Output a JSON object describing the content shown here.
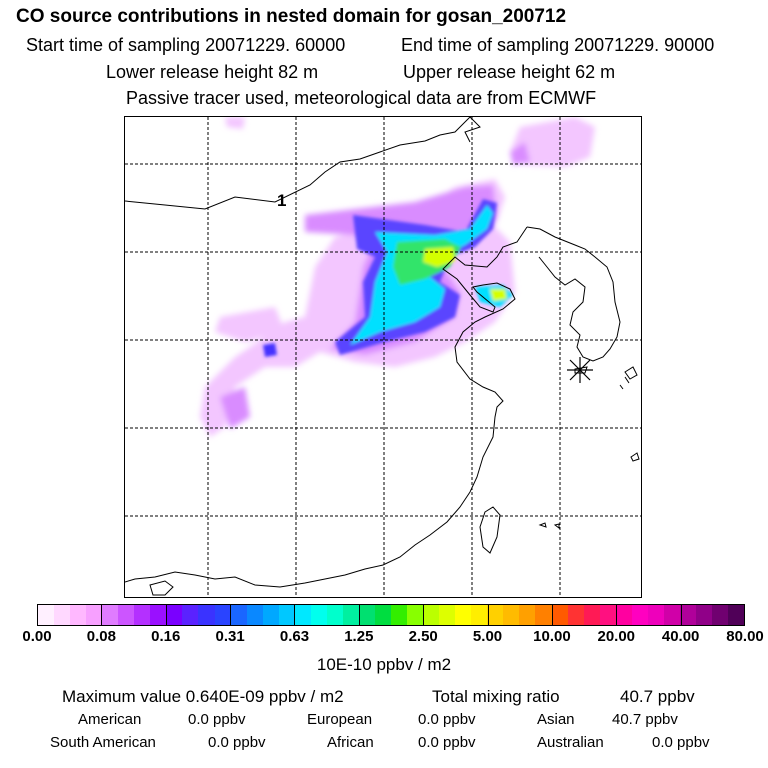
{
  "title": "CO  source contributions in nested domain for gosan_200712",
  "header": {
    "start_label": "Start time of sampling 20071229. 60000",
    "end_label": "End time of sampling 20071229. 90000",
    "lower_label": "Lower release height   82 m",
    "upper_label": "Upper release height   62 m",
    "tracer_line": "Passive tracer used, meteorological data are from ECMWF"
  },
  "map": {
    "label_1": "1",
    "receptor_icon": "asterisk-receptor-marker"
  },
  "colorbar": {
    "ticks": [
      "0.00",
      "0.08",
      "0.16",
      "0.31",
      "0.63",
      "1.25",
      "2.50",
      "5.00",
      "10.00",
      "20.00",
      "40.00",
      "80.00"
    ],
    "unit": "10E-10 ppbv / m2",
    "colors": [
      "#fff0ff",
      "#ffd8ff",
      "#ffb8ff",
      "#f7a0ff",
      "#e07cff",
      "#cc55ff",
      "#b430ff",
      "#9a10ff",
      "#7a00ff",
      "#5a22ff",
      "#3a33ff",
      "#2a44ff",
      "#1a66ff",
      "#0a88ff",
      "#00a8ff",
      "#00c8ff",
      "#00e8ff",
      "#00ffee",
      "#00ffcc",
      "#00f0a0",
      "#00e070",
      "#00dd40",
      "#33ee00",
      "#88ff00",
      "#bbff00",
      "#ddff00",
      "#ffff00",
      "#ffee00",
      "#ffd000",
      "#ffbb00",
      "#ffa000",
      "#ff8000",
      "#ff5a00",
      "#ff3333",
      "#ff1a55",
      "#ff1080",
      "#ff00a0",
      "#ff00c0",
      "#ee00bb",
      "#d000a8",
      "#b0009a",
      "#900088",
      "#700070",
      "#500058"
    ]
  },
  "stats": {
    "max_label": "Maximum value  0.640E-09 ppbv / m2",
    "total_label": "Total mixing ratio",
    "total_value": "40.7 ppbv"
  },
  "sources": [
    {
      "name": "American",
      "value": "0.0 ppbv"
    },
    {
      "name": "European",
      "value": "0.0 ppbv"
    },
    {
      "name": "Asian",
      "value": "40.7 ppbv"
    },
    {
      "name": "South American",
      "value": "0.0 ppbv"
    },
    {
      "name": "African",
      "value": "0.0 ppbv"
    },
    {
      "name": "Australian",
      "value": "0.0 ppbv"
    }
  ]
}
